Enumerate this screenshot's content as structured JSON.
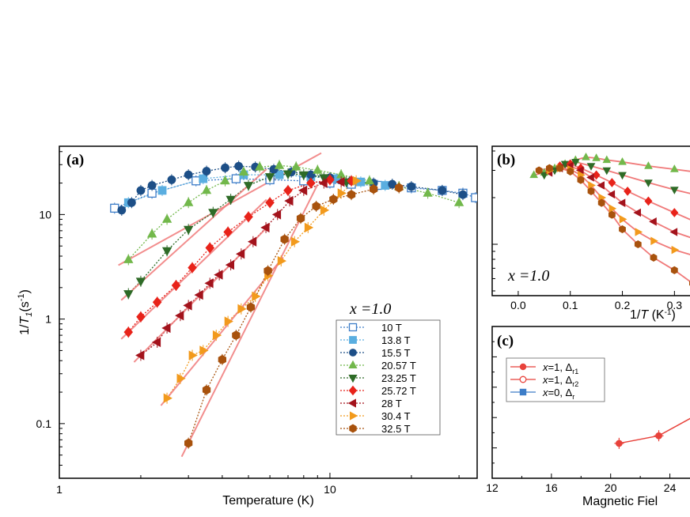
{
  "chart_data": [
    {
      "panel": "(a)",
      "type": "scatter",
      "xscale": "log",
      "yscale": "log",
      "xlabel": "Temperature (K)",
      "ylabel": "1/T1(s-1)",
      "xlim": [
        1,
        35
      ],
      "ylim": [
        0.03,
        45
      ],
      "xticks": [
        {
          "v": 1,
          "label": "1"
        },
        {
          "v": 10,
          "label": "10"
        }
      ],
      "yticks": [
        {
          "v": 0.1,
          "label": "0.1"
        },
        {
          "v": 1,
          "label": "1"
        },
        {
          "v": 10,
          "label": "10"
        }
      ],
      "annotation": "x =1.0",
      "legend_title": "x =1.0",
      "legend_position": "lower-right",
      "series": [
        {
          "name": "10 T",
          "color": "#3d7dc8",
          "marker": "square-open",
          "x": [
            1.6,
            2.2,
            3.2,
            4.5,
            6.0,
            8.0,
            10.0,
            12.0,
            15.0,
            20.0,
            26.0,
            31.0,
            34.5
          ],
          "y": [
            11.5,
            16.0,
            21.0,
            22.0,
            21.5,
            21.0,
            20.0,
            19.5,
            19.0,
            18.0,
            17.0,
            16.0,
            14.5
          ]
        },
        {
          "name": "13.8 T",
          "color": "#5aaee0",
          "marker": "square",
          "x": [
            1.8,
            2.4,
            3.4,
            4.8,
            6.5,
            8.5,
            10.5,
            13.0,
            16.0
          ],
          "y": [
            13.0,
            17.0,
            22.0,
            24.0,
            24.0,
            23.0,
            22.0,
            20.5,
            19.0
          ]
        },
        {
          "name": "15.5 T",
          "color": "#1d4f87",
          "marker": "circle",
          "x": [
            1.7,
            1.85,
            2.0,
            2.2,
            2.6,
            3.0,
            3.5,
            4.1,
            4.6,
            5.3,
            6.2,
            7.2,
            8.5,
            10.0,
            12.0,
            14.5,
            17.0,
            20.0,
            26.0,
            31.0
          ],
          "y": [
            11.0,
            13.0,
            17.0,
            19.0,
            21.5,
            24.0,
            26.0,
            28.0,
            29.0,
            28.5,
            27.0,
            25.5,
            24.0,
            22.5,
            21.0,
            20.0,
            19.5,
            18.5,
            17.0,
            15.5
          ]
        },
        {
          "name": "20.57 T",
          "color": "#72b84b",
          "marker": "triangle-up",
          "x": [
            1.8,
            2.2,
            2.5,
            3.0,
            3.5,
            4.1,
            4.8,
            5.5,
            6.5,
            7.5,
            9.0,
            11.0,
            14.0,
            18.0,
            23.0,
            30.0
          ],
          "y": [
            3.7,
            6.5,
            9.0,
            13.0,
            17.0,
            21.0,
            25.5,
            28.5,
            29.5,
            28.5,
            26.5,
            24.0,
            21.0,
            18.5,
            16.0,
            13.0
          ]
        },
        {
          "name": "23.25 T",
          "color": "#2e6b27",
          "marker": "triangle-down",
          "x": [
            1.8,
            2.0,
            2.5,
            3.0,
            3.7,
            4.3,
            5.0,
            6.0,
            7.0,
            8.0,
            9.5,
            11.5
          ],
          "y": [
            1.75,
            2.3,
            4.5,
            7.2,
            10.5,
            14.0,
            19.0,
            23.0,
            24.5,
            24.0,
            22.5,
            20.5
          ]
        },
        {
          "name": "25.72 T",
          "color": "#e8231a",
          "marker": "diamond",
          "x": [
            1.8,
            2.0,
            2.3,
            2.7,
            3.1,
            3.6,
            4.2,
            5.0,
            6.0,
            7.0,
            8.5,
            10.0,
            12.0
          ],
          "y": [
            0.75,
            1.05,
            1.45,
            2.1,
            3.1,
            4.8,
            6.8,
            9.5,
            13.0,
            17.0,
            20.0,
            21.5,
            21.0
          ]
        },
        {
          "name": "28 T",
          "color": "#a3131c",
          "marker": "triangle-left",
          "x": [
            2.0,
            2.3,
            2.5,
            2.8,
            3.0,
            3.3,
            3.6,
            3.9,
            4.3,
            4.7,
            5.2,
            5.8,
            6.4,
            7.1,
            8.0,
            9.5,
            11.0
          ],
          "y": [
            0.45,
            0.6,
            0.82,
            1.08,
            1.35,
            1.7,
            2.2,
            2.65,
            3.3,
            4.2,
            5.5,
            7.5,
            10.0,
            13.5,
            17.0,
            20.0,
            20.5
          ]
        },
        {
          "name": "30.4 T",
          "color": "#f29a1c",
          "marker": "triangle-right",
          "x": [
            2.5,
            2.8,
            3.1,
            3.4,
            3.8,
            4.2,
            4.7,
            5.3,
            5.9,
            6.6,
            7.4,
            8.3,
            9.5,
            11.0,
            12.5
          ],
          "y": [
            0.175,
            0.27,
            0.45,
            0.5,
            0.7,
            0.95,
            1.25,
            1.65,
            2.6,
            3.6,
            5.5,
            7.5,
            11.0,
            16.0,
            21.0
          ]
        },
        {
          "name": "32.5 T",
          "color": "#a8520d",
          "marker": "hexagon",
          "x": [
            3.0,
            3.5,
            4.0,
            4.5,
            5.1,
            5.9,
            6.8,
            7.8,
            8.9,
            10.3,
            12.0,
            14.5,
            18.0
          ],
          "y": [
            0.065,
            0.21,
            0.41,
            0.7,
            1.3,
            2.9,
            5.8,
            9.2,
            12.0,
            14.0,
            15.5,
            17.5,
            18.0
          ]
        }
      ]
    },
    {
      "panel": "(b)",
      "type": "scatter",
      "yscale": "log",
      "xlabel": "1/T (K-1)",
      "xlim": [
        -0.05,
        0.38
      ],
      "ylim": [
        5,
        40
      ],
      "xticks": [
        {
          "v": 0.0,
          "label": "0.0"
        },
        {
          "v": 0.1,
          "label": "0.1"
        },
        {
          "v": 0.2,
          "label": "0.2"
        },
        {
          "v": 0.3,
          "label": "0.3"
        }
      ],
      "annotation": "x =1.0",
      "series": [
        {
          "name": "20.57 T",
          "color": "#72b84b",
          "marker": "triangle-up",
          "x": [
            0.03,
            0.05,
            0.07,
            0.09,
            0.11,
            0.13,
            0.15,
            0.17,
            0.2,
            0.25,
            0.3,
            0.35
          ],
          "y": [
            28,
            29,
            31,
            33,
            35,
            36.5,
            36,
            35,
            34,
            32,
            30.5,
            29
          ]
        },
        {
          "name": "23.25 T",
          "color": "#2e6b27",
          "marker": "triangle-down",
          "x": [
            0.05,
            0.07,
            0.09,
            0.11,
            0.14,
            0.17,
            0.2,
            0.25,
            0.3,
            0.35
          ],
          "y": [
            28,
            30,
            33,
            34,
            32,
            30,
            28,
            25,
            22.5,
            20.5
          ]
        },
        {
          "name": "25.72 T",
          "color": "#e8231a",
          "marker": "diamond",
          "x": [
            0.06,
            0.08,
            0.1,
            0.12,
            0.15,
            0.18,
            0.21,
            0.25,
            0.3,
            0.35
          ],
          "y": [
            30,
            32,
            33,
            31,
            28,
            25,
            22,
            19,
            16,
            13.5
          ]
        },
        {
          "name": "28 T",
          "color": "#a3131c",
          "marker": "triangle-left",
          "x": [
            0.06,
            0.08,
            0.1,
            0.12,
            0.14,
            0.16,
            0.18,
            0.2,
            0.23,
            0.26,
            0.3,
            0.35
          ],
          "y": [
            29,
            31,
            32,
            30,
            27,
            24,
            21,
            18.5,
            16,
            14,
            12,
            10.5
          ]
        },
        {
          "name": "30.4 T",
          "color": "#f29a1c",
          "marker": "triangle-right",
          "x": [
            0.06,
            0.08,
            0.1,
            0.12,
            0.14,
            0.16,
            0.18,
            0.2,
            0.23,
            0.26,
            0.3,
            0.35
          ],
          "y": [
            30,
            31,
            30.5,
            28,
            24,
            20,
            17,
            14.5,
            12,
            10.5,
            9.2,
            8.2
          ]
        },
        {
          "name": "32.5 T",
          "color": "#a8520d",
          "marker": "hexagon",
          "x": [
            0.04,
            0.06,
            0.08,
            0.1,
            0.12,
            0.14,
            0.16,
            0.18,
            0.2,
            0.23,
            0.26,
            0.3,
            0.335
          ],
          "y": [
            30,
            31,
            31,
            29.5,
            26,
            22,
            18.5,
            15.5,
            12.5,
            10,
            8.2,
            6.8,
            5.6
          ]
        }
      ]
    },
    {
      "panel": "(c)",
      "type": "line",
      "xlabel": "Magnetic Fiel",
      "xlim": [
        12,
        26
      ],
      "xticks": [
        {
          "v": 12,
          "label": "12"
        },
        {
          "v": 16,
          "label": "16"
        },
        {
          "v": 20,
          "label": "20"
        },
        {
          "v": 24,
          "label": "24"
        }
      ],
      "ylim": [
        0,
        10
      ],
      "legend_position": "top-left",
      "legend": [
        {
          "name": "x=1, Δr1",
          "main": "x=1, Δ",
          "sub": "r1",
          "color": "#e8423b",
          "marker": "circle"
        },
        {
          "name": "x=1, Δr2",
          "main": "x=1, Δ",
          "sub": "r2",
          "color": "#e8423b",
          "marker": "circle-open"
        },
        {
          "name": "x=0, Δr",
          "main": "x=0, Δ",
          "sub": "r",
          "color": "#3d7dc8",
          "marker": "square"
        }
      ],
      "series": [
        {
          "name": "x=1, Δr1",
          "color": "#e8423b",
          "marker": "circle",
          "x": [
            20.57,
            23.25
          ],
          "y": [
            2.3,
            2.8
          ]
        }
      ]
    }
  ]
}
